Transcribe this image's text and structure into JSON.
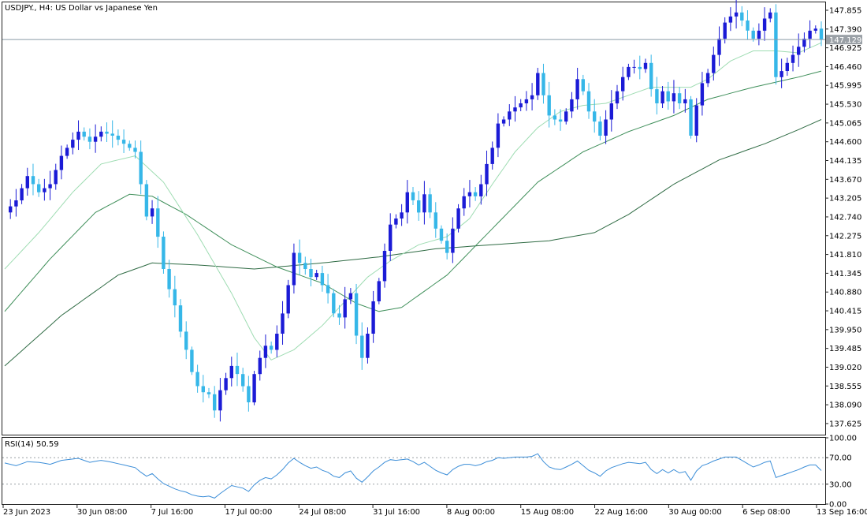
{
  "window": {
    "title": "USDJPY., H4:  US Dollar vs Japanese Yen"
  },
  "colors": {
    "background": "#ffffff",
    "grid_line": "#9aa0a6",
    "bull_candle": "#1b1bd6",
    "bear_candle": "#36b7e8",
    "ma_fast": "#9edcb2",
    "ma_mid": "#3f8f5a",
    "ma_slow": "#2f6b44",
    "rsi_line": "#3c8ed8",
    "price_badge": "#9aa0a6"
  },
  "main_chart": {
    "price_axis_ticks": [
      "147.855",
      "147.390",
      "146.925",
      "146.460",
      "145.995",
      "145.530",
      "145.065",
      "144.600",
      "144.135",
      "143.670",
      "143.205",
      "142.740",
      "142.275",
      "141.810",
      "141.345",
      "140.880",
      "140.415",
      "139.950",
      "139.485",
      "139.020",
      "138.555",
      "138.090",
      "137.625"
    ],
    "current_price_label": "147.129"
  },
  "rsi_panel": {
    "label": "RSI(14) 50.59",
    "axis_ticks": [
      "100.00",
      "70.00",
      "30.00",
      "0.00"
    ]
  },
  "time_axis": {
    "labels": [
      "23 Jun 2023",
      "30 Jun 08:00",
      "7 Jul 16:00",
      "17 Jul 00:00",
      "24 Jul 08:00",
      "31 Jul 16:00",
      "8 Aug 00:00",
      "15 Aug 08:00",
      "22 Aug 16:00",
      "30 Aug 00:00",
      "6 Sep 08:00",
      "13 Sep 16:00"
    ]
  },
  "chart_data": [
    {
      "type": "candlestick",
      "title": "USDJPY., H4:  US Dollar vs Japanese Yen",
      "ylim": [
        137.35,
        148.05
      ],
      "last_price": 147.129,
      "y_ticks": [
        147.855,
        147.39,
        146.925,
        146.46,
        145.995,
        145.53,
        145.065,
        144.6,
        144.135,
        143.67,
        143.205,
        142.74,
        142.275,
        141.81,
        141.345,
        140.88,
        140.415,
        139.95,
        139.485,
        139.02,
        138.555,
        138.09,
        137.625
      ],
      "x_tick_labels": [
        "23 Jun 2023",
        "30 Jun 08:00",
        "7 Jul 16:00",
        "17 Jul 00:00",
        "24 Jul 08:00",
        "31 Jul 16:00",
        "8 Aug 00:00",
        "15 Aug 08:00",
        "22 Aug 16:00",
        "30 Aug 00:00",
        "6 Sep 08:00",
        "13 Sep 16:00"
      ],
      "close_path": [
        [
          0,
          142.85
        ],
        [
          2,
          143.15
        ],
        [
          4,
          143.75
        ],
        [
          6,
          143.35
        ],
        [
          8,
          143.55
        ],
        [
          10,
          144.25
        ],
        [
          12,
          144.65
        ],
        [
          13,
          144.85
        ],
        [
          15,
          144.6
        ],
        [
          17,
          144.85
        ],
        [
          19,
          144.75
        ],
        [
          21,
          144.55
        ],
        [
          23,
          144.35
        ],
        [
          24,
          143.55
        ],
        [
          25,
          142.75
        ],
        [
          26,
          142.95
        ],
        [
          27,
          142.25
        ],
        [
          28,
          141.45
        ],
        [
          29,
          140.95
        ],
        [
          30,
          140.55
        ],
        [
          31,
          139.9
        ],
        [
          32,
          139.45
        ],
        [
          33,
          138.9
        ],
        [
          34,
          138.55
        ],
        [
          35,
          138.4
        ],
        [
          36,
          138.35
        ],
        [
          37,
          137.95
        ],
        [
          38,
          138.45
        ],
        [
          39,
          138.75
        ],
        [
          40,
          139.05
        ],
        [
          41,
          138.85
        ],
        [
          42,
          138.55
        ],
        [
          43,
          138.15
        ],
        [
          44,
          138.85
        ],
        [
          45,
          139.25
        ],
        [
          46,
          139.55
        ],
        [
          47,
          139.45
        ],
        [
          48,
          139.85
        ],
        [
          49,
          140.35
        ],
        [
          50,
          141.05
        ],
        [
          51,
          141.85
        ],
        [
          52,
          141.6
        ],
        [
          53,
          141.45
        ],
        [
          54,
          141.25
        ],
        [
          55,
          141.35
        ],
        [
          56,
          141.05
        ],
        [
          57,
          140.85
        ],
        [
          58,
          140.35
        ],
        [
          59,
          140.25
        ],
        [
          60,
          140.7
        ],
        [
          61,
          140.85
        ],
        [
          62,
          139.8
        ],
        [
          63,
          139.25
        ],
        [
          64,
          139.85
        ],
        [
          65,
          140.65
        ],
        [
          66,
          141.15
        ],
        [
          67,
          141.9
        ],
        [
          68,
          142.55
        ],
        [
          69,
          142.7
        ],
        [
          70,
          142.85
        ],
        [
          71,
          143.35
        ],
        [
          72,
          143.15
        ],
        [
          73,
          142.85
        ],
        [
          74,
          143.3
        ],
        [
          75,
          142.85
        ],
        [
          76,
          142.45
        ],
        [
          77,
          142.15
        ],
        [
          78,
          141.85
        ],
        [
          79,
          142.45
        ],
        [
          80,
          142.95
        ],
        [
          81,
          143.25
        ],
        [
          82,
          143.35
        ],
        [
          83,
          143.25
        ],
        [
          84,
          143.55
        ],
        [
          85,
          144.05
        ],
        [
          86,
          144.45
        ],
        [
          87,
          145.05
        ],
        [
          88,
          145.15
        ],
        [
          89,
          145.35
        ],
        [
          90,
          145.45
        ],
        [
          91,
          145.55
        ],
        [
          92,
          145.65
        ],
        [
          93,
          145.75
        ],
        [
          94,
          146.3
        ],
        [
          95,
          145.75
        ],
        [
          96,
          145.25
        ],
        [
          97,
          145.15
        ],
        [
          98,
          145.1
        ],
        [
          99,
          145.35
        ],
        [
          100,
          145.65
        ],
        [
          101,
          146.15
        ],
        [
          102,
          145.85
        ],
        [
          103,
          145.35
        ],
        [
          104,
          145.1
        ],
        [
          105,
          144.75
        ],
        [
          106,
          145.15
        ],
        [
          107,
          145.55
        ],
        [
          108,
          145.85
        ],
        [
          109,
          146.2
        ],
        [
          110,
          146.45
        ],
        [
          111,
          146.45
        ],
        [
          112,
          146.4
        ],
        [
          113,
          146.55
        ],
        [
          114,
          145.9
        ],
        [
          115,
          145.55
        ],
        [
          116,
          145.85
        ],
        [
          117,
          145.6
        ],
        [
          118,
          145.8
        ],
        [
          119,
          145.55
        ],
        [
          120,
          145.65
        ],
        [
          121,
          144.75
        ],
        [
          122,
          145.5
        ],
        [
          123,
          146.05
        ],
        [
          124,
          146.3
        ],
        [
          125,
          146.75
        ],
        [
          126,
          147.15
        ],
        [
          127,
          147.55
        ],
        [
          128,
          147.7
        ],
        [
          129,
          147.8
        ],
        [
          130,
          147.6
        ],
        [
          131,
          147.35
        ],
        [
          132,
          147.15
        ],
        [
          133,
          147.35
        ],
        [
          134,
          147.65
        ],
        [
          135,
          147.8
        ],
        [
          136,
          146.2
        ],
        [
          137,
          146.35
        ],
        [
          138,
          146.55
        ],
        [
          139,
          146.75
        ],
        [
          140,
          146.95
        ],
        [
          141,
          147.15
        ],
        [
          142,
          147.35
        ],
        [
          143,
          147.4
        ],
        [
          144,
          147.13
        ]
      ],
      "ma_fast_path": [
        [
          0,
          141.45
        ],
        [
          6,
          142.35
        ],
        [
          12,
          143.35
        ],
        [
          17,
          144.05
        ],
        [
          23,
          144.25
        ],
        [
          28,
          143.6
        ],
        [
          34,
          142.3
        ],
        [
          40,
          140.85
        ],
        [
          44,
          139.75
        ],
        [
          47,
          139.2
        ],
        [
          51,
          139.45
        ],
        [
          56,
          140.05
        ],
        [
          60,
          140.65
        ],
        [
          64,
          141.25
        ],
        [
          68,
          141.65
        ],
        [
          73,
          142.05
        ],
        [
          78,
          142.25
        ],
        [
          82,
          142.7
        ],
        [
          86,
          143.55
        ],
        [
          90,
          144.35
        ],
        [
          94,
          144.95
        ],
        [
          98,
          145.35
        ],
        [
          102,
          145.5
        ],
        [
          106,
          145.55
        ],
        [
          110,
          145.75
        ],
        [
          114,
          145.95
        ],
        [
          118,
          145.95
        ],
        [
          121,
          145.95
        ],
        [
          124,
          146.15
        ],
        [
          128,
          146.6
        ],
        [
          132,
          146.85
        ],
        [
          136,
          146.85
        ],
        [
          140,
          146.8
        ],
        [
          144,
          147.05
        ]
      ],
      "ma_mid_path": [
        [
          0,
          140.4
        ],
        [
          8,
          141.7
        ],
        [
          16,
          142.85
        ],
        [
          22,
          143.3
        ],
        [
          26,
          143.25
        ],
        [
          32,
          142.8
        ],
        [
          40,
          142.05
        ],
        [
          48,
          141.5
        ],
        [
          56,
          141.1
        ],
        [
          62,
          140.6
        ],
        [
          66,
          140.4
        ],
        [
          70,
          140.5
        ],
        [
          78,
          141.3
        ],
        [
          86,
          142.45
        ],
        [
          94,
          143.6
        ],
        [
          102,
          144.35
        ],
        [
          110,
          144.85
        ],
        [
          118,
          145.25
        ],
        [
          124,
          145.65
        ],
        [
          132,
          145.95
        ],
        [
          140,
          146.2
        ],
        [
          144,
          146.35
        ]
      ],
      "ma_slow_path": [
        [
          0,
          139.05
        ],
        [
          10,
          140.3
        ],
        [
          20,
          141.3
        ],
        [
          26,
          141.6
        ],
        [
          34,
          141.55
        ],
        [
          44,
          141.45
        ],
        [
          56,
          141.6
        ],
        [
          66,
          141.75
        ],
        [
          76,
          141.95
        ],
        [
          86,
          142.05
        ],
        [
          96,
          142.15
        ],
        [
          104,
          142.35
        ],
        [
          110,
          142.8
        ],
        [
          118,
          143.55
        ],
        [
          126,
          144.15
        ],
        [
          134,
          144.55
        ],
        [
          140,
          144.9
        ],
        [
          144,
          145.15
        ]
      ]
    },
    {
      "type": "line",
      "title": "RSI(14) 50.59",
      "ylim": [
        0,
        100
      ],
      "levels": [
        70,
        30
      ],
      "last_value": 50.59,
      "rsi_path": [
        [
          0,
          62
        ],
        [
          2,
          58
        ],
        [
          4,
          64
        ],
        [
          6,
          63
        ],
        [
          8,
          60
        ],
        [
          10,
          66
        ],
        [
          12,
          68
        ],
        [
          13,
          69
        ],
        [
          15,
          63
        ],
        [
          17,
          66
        ],
        [
          19,
          63
        ],
        [
          21,
          59
        ],
        [
          23,
          55
        ],
        [
          24,
          48
        ],
        [
          25,
          42
        ],
        [
          26,
          46
        ],
        [
          27,
          38
        ],
        [
          28,
          31
        ],
        [
          29,
          27
        ],
        [
          30,
          23
        ],
        [
          31,
          20
        ],
        [
          32,
          18
        ],
        [
          33,
          14
        ],
        [
          34,
          12
        ],
        [
          35,
          11
        ],
        [
          36,
          12
        ],
        [
          37,
          9
        ],
        [
          38,
          16
        ],
        [
          39,
          22
        ],
        [
          40,
          28
        ],
        [
          41,
          26
        ],
        [
          42,
          24
        ],
        [
          43,
          19
        ],
        [
          44,
          29
        ],
        [
          45,
          36
        ],
        [
          46,
          40
        ],
        [
          47,
          38
        ],
        [
          48,
          44
        ],
        [
          49,
          52
        ],
        [
          50,
          62
        ],
        [
          51,
          69
        ],
        [
          52,
          63
        ],
        [
          53,
          58
        ],
        [
          54,
          54
        ],
        [
          55,
          56
        ],
        [
          56,
          51
        ],
        [
          57,
          48
        ],
        [
          58,
          42
        ],
        [
          59,
          40
        ],
        [
          60,
          47
        ],
        [
          61,
          50
        ],
        [
          62,
          39
        ],
        [
          63,
          33
        ],
        [
          64,
          41
        ],
        [
          65,
          50
        ],
        [
          66,
          56
        ],
        [
          67,
          63
        ],
        [
          68,
          67
        ],
        [
          69,
          66
        ],
        [
          70,
          67
        ],
        [
          71,
          68
        ],
        [
          72,
          64
        ],
        [
          73,
          59
        ],
        [
          74,
          63
        ],
        [
          75,
          57
        ],
        [
          76,
          51
        ],
        [
          77,
          47
        ],
        [
          78,
          44
        ],
        [
          79,
          52
        ],
        [
          80,
          57
        ],
        [
          81,
          60
        ],
        [
          82,
          60
        ],
        [
          83,
          58
        ],
        [
          84,
          60
        ],
        [
          85,
          64
        ],
        [
          86,
          66
        ],
        [
          87,
          70
        ],
        [
          88,
          69
        ],
        [
          89,
          70
        ],
        [
          90,
          71
        ],
        [
          91,
          71
        ],
        [
          92,
          71
        ],
        [
          93,
          72
        ],
        [
          94,
          76
        ],
        [
          95,
          64
        ],
        [
          96,
          56
        ],
        [
          97,
          53
        ],
        [
          98,
          52
        ],
        [
          99,
          56
        ],
        [
          100,
          60
        ],
        [
          101,
          65
        ],
        [
          102,
          58
        ],
        [
          103,
          51
        ],
        [
          104,
          47
        ],
        [
          105,
          42
        ],
        [
          106,
          50
        ],
        [
          107,
          55
        ],
        [
          108,
          58
        ],
        [
          109,
          61
        ],
        [
          110,
          63
        ],
        [
          111,
          62
        ],
        [
          112,
          61
        ],
        [
          113,
          63
        ],
        [
          114,
          52
        ],
        [
          115,
          46
        ],
        [
          116,
          52
        ],
        [
          117,
          47
        ],
        [
          118,
          52
        ],
        [
          119,
          47
        ],
        [
          120,
          49
        ],
        [
          121,
          36
        ],
        [
          122,
          50
        ],
        [
          123,
          58
        ],
        [
          124,
          61
        ],
        [
          125,
          65
        ],
        [
          126,
          68
        ],
        [
          127,
          71
        ],
        [
          128,
          71
        ],
        [
          129,
          71
        ],
        [
          130,
          66
        ],
        [
          131,
          61
        ],
        [
          132,
          56
        ],
        [
          133,
          59
        ],
        [
          134,
          63
        ],
        [
          135,
          65
        ],
        [
          136,
          40
        ],
        [
          137,
          43
        ],
        [
          138,
          46
        ],
        [
          139,
          49
        ],
        [
          140,
          52
        ],
        [
          141,
          56
        ],
        [
          142,
          59
        ],
        [
          143,
          59
        ],
        [
          144,
          50.59
        ]
      ]
    }
  ]
}
